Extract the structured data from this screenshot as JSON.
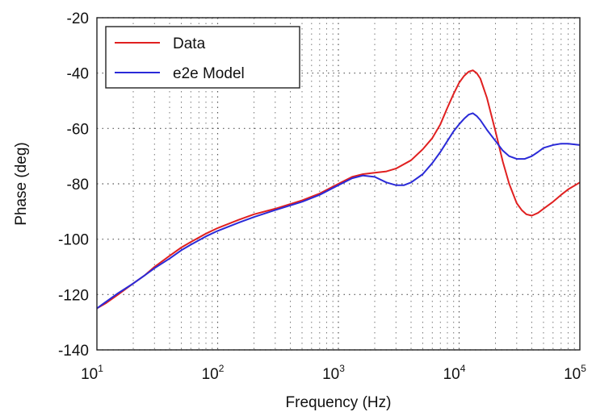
{
  "chart_data": {
    "type": "line",
    "title": "",
    "xlabel": "Frequency (Hz)",
    "ylabel": "Phase (deg)",
    "xscale": "log",
    "xlim": [
      10,
      100000
    ],
    "ylim": [
      -140,
      -20
    ],
    "xticks": [
      {
        "base": "10",
        "exp": "1"
      },
      {
        "base": "10",
        "exp": "2"
      },
      {
        "base": "10",
        "exp": "3"
      },
      {
        "base": "10",
        "exp": "4"
      },
      {
        "base": "10",
        "exp": "5"
      }
    ],
    "yticks": [
      "-20",
      "-40",
      "-60",
      "-80",
      "-100",
      "-120",
      "-140"
    ],
    "grid": true,
    "legend_position": "top-left",
    "series": [
      {
        "name": "Data",
        "color": "#e02020",
        "x": [
          10,
          12,
          15,
          20,
          25,
          30,
          40,
          50,
          60,
          80,
          100,
          150,
          200,
          300,
          500,
          700,
          1000,
          1300,
          1600,
          2000,
          2500,
          3000,
          4000,
          5000,
          6000,
          7000,
          8000,
          9000,
          10000,
          11000,
          12000,
          13000,
          14000,
          15000,
          17000,
          20000,
          23000,
          26000,
          30000,
          33000,
          36000,
          40000,
          45000,
          50000,
          60000,
          70000,
          80000,
          100000
        ],
        "y": [
          -125,
          -123,
          -120,
          -116,
          -113,
          -110,
          -106,
          -103,
          -101,
          -98,
          -96,
          -93,
          -91,
          -89,
          -86,
          -83.5,
          -80,
          -77.5,
          -76.5,
          -76,
          -75.5,
          -74.5,
          -71.5,
          -67.5,
          -63.5,
          -58.5,
          -52.5,
          -47.5,
          -43.5,
          -41,
          -39.5,
          -39,
          -40,
          -42,
          -49,
          -61,
          -72,
          -80,
          -87,
          -89.5,
          -91,
          -91.5,
          -90.5,
          -89,
          -86.5,
          -84,
          -82,
          -79.5
        ]
      },
      {
        "name": "e2e Model",
        "color": "#2a2ad8",
        "x": [
          10,
          12,
          15,
          20,
          25,
          30,
          40,
          50,
          60,
          80,
          100,
          150,
          200,
          300,
          500,
          700,
          1000,
          1300,
          1600,
          2000,
          2500,
          3000,
          3500,
          4000,
          5000,
          6000,
          7000,
          8000,
          9000,
          10000,
          11000,
          12000,
          13000,
          14000,
          15000,
          17000,
          20000,
          23000,
          26000,
          30000,
          35000,
          40000,
          45000,
          50000,
          60000,
          70000,
          80000,
          100000
        ],
        "y": [
          -125,
          -122.5,
          -119.5,
          -116,
          -113,
          -110.5,
          -107,
          -104,
          -102,
          -99,
          -97,
          -94,
          -92,
          -89.5,
          -86.5,
          -84,
          -80.5,
          -78,
          -77,
          -77.5,
          -79.5,
          -80.5,
          -80.5,
          -79.5,
          -76.5,
          -72.5,
          -68.5,
          -64.5,
          -61,
          -58.5,
          -56.5,
          -55,
          -54.5,
          -55.5,
          -57,
          -60.5,
          -64.5,
          -68,
          -70,
          -71,
          -71,
          -70,
          -68.5,
          -67,
          -66,
          -65.5,
          -65.5,
          -66
        ]
      }
    ]
  }
}
